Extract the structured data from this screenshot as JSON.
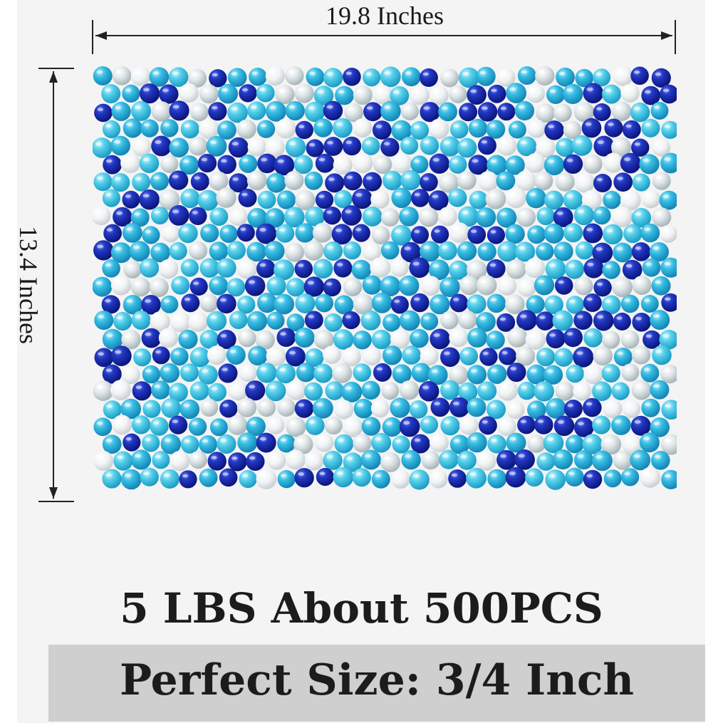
{
  "dimensions": {
    "width_label": "19.8 Inches",
    "height_label": "13.4 Inches"
  },
  "product": {
    "quantity_text": "5 LBS About 500PCS",
    "size_text": "Perfect Size: 3/4 Inch"
  },
  "bead_colors": {
    "cobalt": "#1a2fb5",
    "cobalt_dark": "#0e1a86",
    "sky": "#2fb7e0",
    "turquoise": "#43c8e6",
    "aqua": "#7ad8ef",
    "white": "#f3f5f6",
    "clear": "#dfe6e8"
  },
  "colors": {
    "background": "#f4f4f4",
    "size_band": "#cfcfcf",
    "text": "#1c1c1c"
  }
}
